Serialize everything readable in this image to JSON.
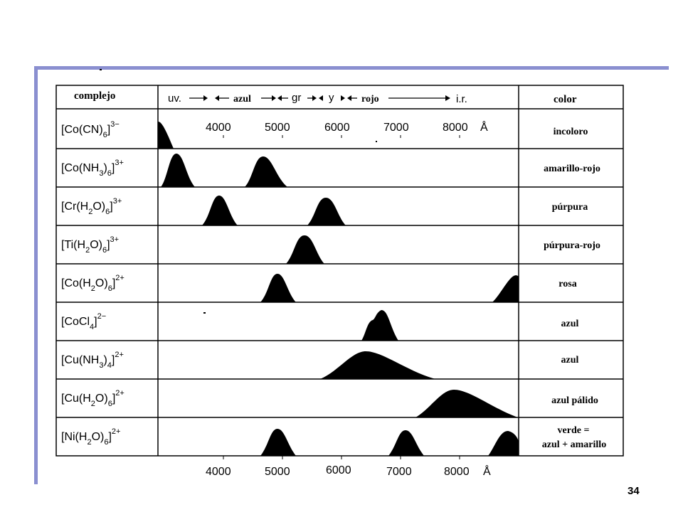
{
  "slide_number": "34",
  "header": {
    "complex_col": "complejo",
    "color_col": "color",
    "region_uv": "uv.",
    "region_blue": "azul",
    "region_green": "gr",
    "region_yellow": "y",
    "region_red": "rojo",
    "region_ir": "i.r."
  },
  "top_axis": {
    "ticks": [
      "4000",
      "5000",
      "6000",
      "7000",
      "8000"
    ],
    "unit": "Å"
  },
  "bottom_axis": {
    "ticks": [
      "4000",
      "5000",
      "6000",
      "7000",
      "8000"
    ],
    "unit": "Å"
  },
  "rows": [
    {
      "complex": "[Co(CN)",
      "sub": "6",
      "sup": "3−",
      "color": "incoloro"
    },
    {
      "complex": "[Co(NH",
      "sub": "3",
      "sub2": "6",
      "sup": "3+",
      "color": "amarillo-rojo"
    },
    {
      "complex": "[Cr(H",
      "sub": "2",
      "sub2": "6",
      "sup": "3+",
      "color": "púrpura"
    },
    {
      "complex": "[Ti(H",
      "sub": "2",
      "sub2": "6",
      "sup": "3+",
      "color": "púrpura-rojo"
    },
    {
      "complex": "[Co(H",
      "sub": "2",
      "sub2": "6",
      "sup": "2+",
      "color": "rosa"
    },
    {
      "complex": "[CoCl",
      "sub": "4",
      "sup": "2−",
      "color": "azul"
    },
    {
      "complex": "[Cu(NH",
      "sub": "3",
      "sub2": "4",
      "sup": "2+",
      "color": "azul"
    },
    {
      "complex": "[Cu(H",
      "sub": "2",
      "sub2": "6",
      "sup": "2+",
      "color": "azul pálido"
    },
    {
      "complex": "[Ni(H",
      "sub": "2",
      "sub2": "6",
      "sup": "2+",
      "color": "verde =",
      "color2": "azul + amarillo"
    }
  ]
}
